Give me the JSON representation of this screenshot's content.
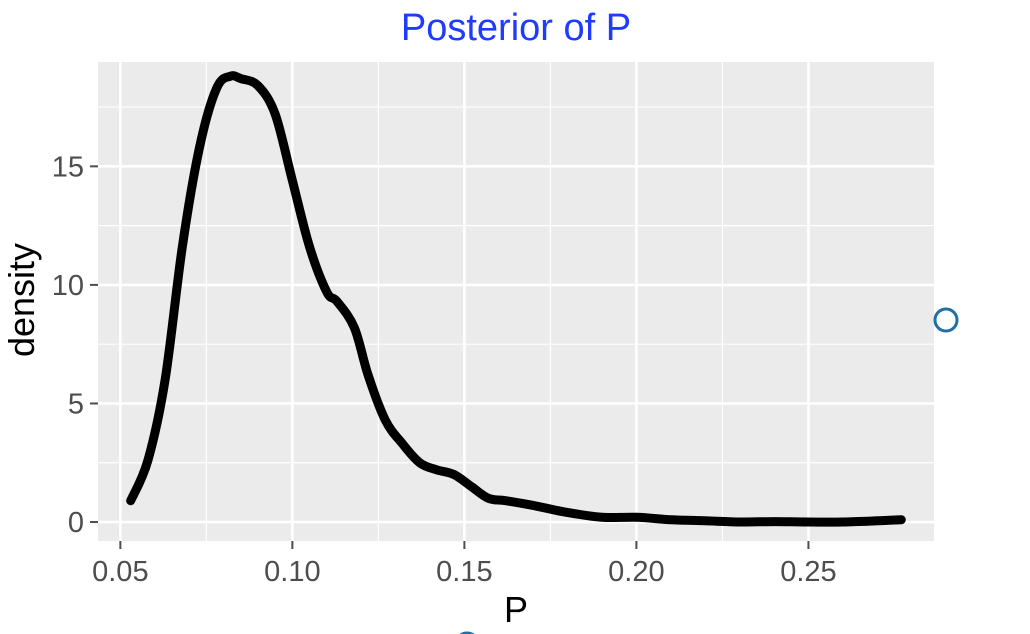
{
  "chart_data": {
    "type": "line",
    "title": "Posterior of P",
    "xlabel": "P",
    "ylabel": "density",
    "xlim": [
      0.0435,
      0.2865
    ],
    "ylim": [
      -0.8,
      19.4
    ],
    "x_ticks": [
      0.05,
      0.1,
      0.15,
      0.2,
      0.25
    ],
    "x_tick_labels": [
      "0.05",
      "0.10",
      "0.15",
      "0.20",
      "0.25"
    ],
    "y_ticks": [
      0,
      5,
      10,
      15
    ],
    "y_tick_labels": [
      "0",
      "5",
      "10",
      "15"
    ],
    "grid": true,
    "series": [
      {
        "x": [
          0.053,
          0.058,
          0.063,
          0.068,
          0.073,
          0.078,
          0.082,
          0.085,
          0.09,
          0.095,
          0.1,
          0.105,
          0.11,
          0.113,
          0.118,
          0.122,
          0.127,
          0.132,
          0.137,
          0.142,
          0.147,
          0.152,
          0.157,
          0.162,
          0.17,
          0.18,
          0.19,
          0.2,
          0.21,
          0.22,
          0.23,
          0.24,
          0.25,
          0.26,
          0.27,
          0.277
        ],
        "values": [
          0.9,
          2.6,
          6.0,
          11.6,
          15.8,
          18.3,
          18.8,
          18.7,
          18.4,
          17.2,
          14.4,
          11.6,
          9.7,
          9.3,
          8.2,
          6.2,
          4.3,
          3.3,
          2.5,
          2.2,
          2.0,
          1.5,
          1.0,
          0.9,
          0.7,
          0.4,
          0.2,
          0.2,
          0.1,
          0.05,
          0.0,
          0.02,
          0.0,
          0.0,
          0.05,
          0.1
        ]
      }
    ]
  },
  "colors": {
    "title": "#1f3bff",
    "panel": "#ebebeb",
    "grid_major": "#ffffff",
    "line": "#000000",
    "tick": "#4d4d4d",
    "marker": "#1f6fa8"
  }
}
